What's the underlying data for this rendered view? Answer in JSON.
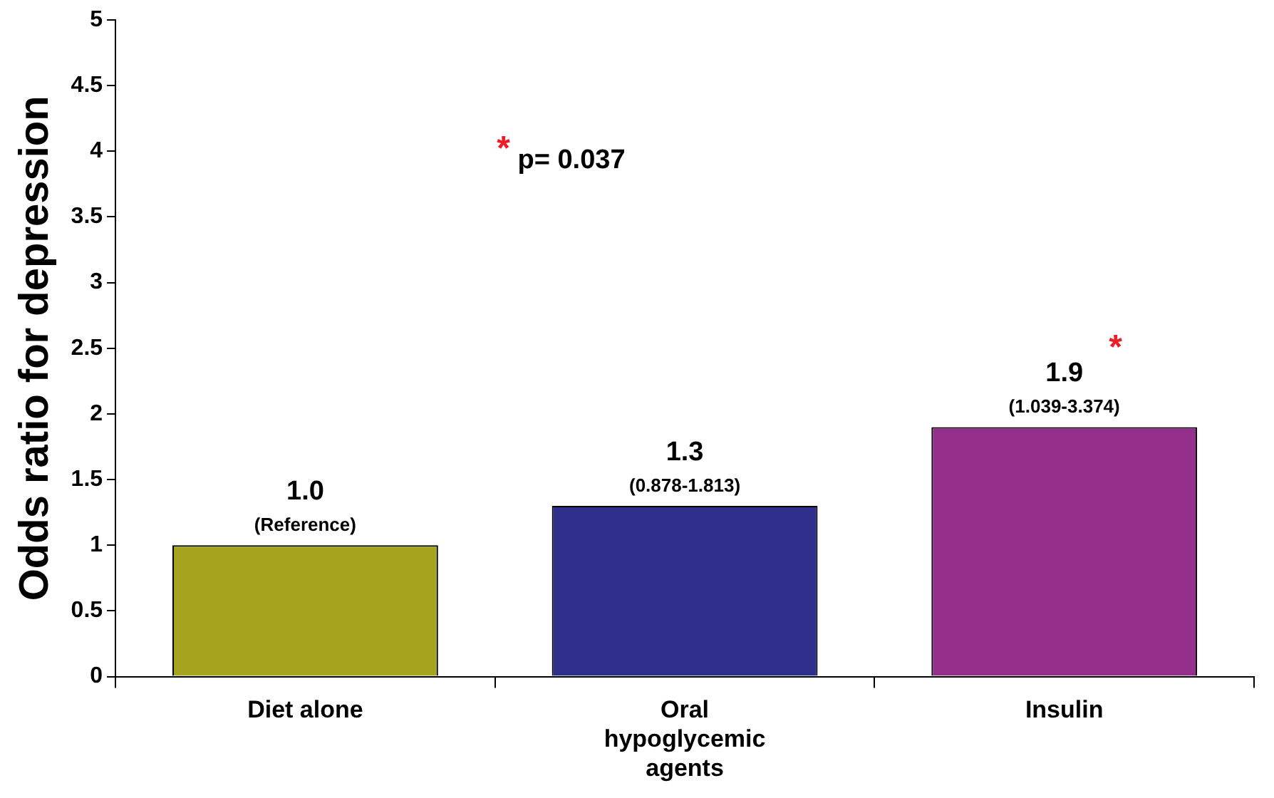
{
  "chart_data": {
    "type": "bar",
    "ylabel": "Odds ratio for depression",
    "categories": [
      "Diet alone",
      "Oral hypoglycemic agents",
      "Insulin"
    ],
    "values": [
      1,
      1.3,
      1.9
    ],
    "colors": [
      "#a6a31e",
      "#2e2f8a",
      "#952f8c"
    ],
    "value_labels": [
      "1.0\n(Reference)",
      "1.3\n(0.878-1.813)",
      "1.9\n(1.039-3.374)"
    ],
    "ylim": [
      0,
      5
    ],
    "yticks": [
      0,
      0.5,
      1,
      1.5,
      2,
      2.5,
      3,
      3.5,
      4,
      4.5,
      5
    ],
    "grid": false,
    "legend": false,
    "annotations": [
      {
        "text": "*",
        "x": "Insulin",
        "y": 1.9
      },
      "* p= 0.037"
    ]
  }
}
